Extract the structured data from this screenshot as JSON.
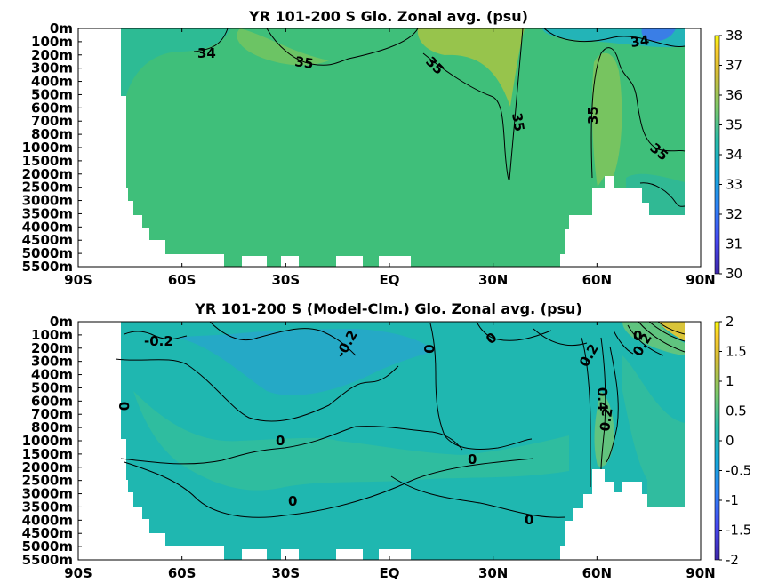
{
  "chart_data": [
    {
      "type": "heatmap",
      "title": "YR 101-200 S Glo. Zonal avg. (psu)",
      "xlabel": "",
      "ylabel": "",
      "x_ticks": [
        "90S",
        "60S",
        "30S",
        "EQ",
        "30N",
        "60N",
        "90N"
      ],
      "x_tick_values": [
        -90,
        -60,
        -30,
        0,
        30,
        60,
        90
      ],
      "y_ticks": [
        "0m",
        "100m",
        "200m",
        "300m",
        "400m",
        "500m",
        "600m",
        "700m",
        "800m",
        "1000m",
        "1500m",
        "2000m",
        "2500m",
        "3000m",
        "3500m",
        "4000m",
        "4500m",
        "5000m",
        "5500m"
      ],
      "colorbar": {
        "min": 30,
        "max": 38,
        "ticks": [
          "30",
          "31",
          "32",
          "33",
          "34",
          "35",
          "36",
          "37",
          "38"
        ]
      },
      "contour_labels": [
        "34",
        "35",
        "35",
        "35",
        "35",
        "34",
        "35"
      ],
      "colors": {
        "background_field": "#3fbf7a",
        "colormap": "parula"
      }
    },
    {
      "type": "heatmap",
      "title": "YR 101-200 S (Model-Clm.) Glo. Zonal avg. (psu)",
      "xlabel": "",
      "ylabel": "",
      "x_ticks": [
        "90S",
        "60S",
        "30S",
        "EQ",
        "30N",
        "60N",
        "90N"
      ],
      "x_tick_values": [
        -90,
        -60,
        -30,
        0,
        30,
        60,
        90
      ],
      "y_ticks": [
        "0m",
        "100m",
        "200m",
        "300m",
        "400m",
        "500m",
        "600m",
        "700m",
        "800m",
        "1000m",
        "1500m",
        "2000m",
        "2500m",
        "3000m",
        "3500m",
        "4000m",
        "4500m",
        "5000m",
        "5500m"
      ],
      "colorbar": {
        "min": -2,
        "max": 2,
        "ticks": [
          "-2",
          "-1.5",
          "-1",
          "-0.5",
          "0",
          "0.5",
          "1",
          "1.5",
          "2"
        ]
      },
      "contour_labels": [
        "-0.2",
        "-0.2",
        "0",
        "0",
        "0",
        "0",
        "0",
        "0",
        "0",
        "0",
        "0.2",
        "0.2",
        "0.4",
        "0.2"
      ],
      "colors": {
        "background_field": "#1fb7b0",
        "colormap": "parula"
      }
    }
  ]
}
